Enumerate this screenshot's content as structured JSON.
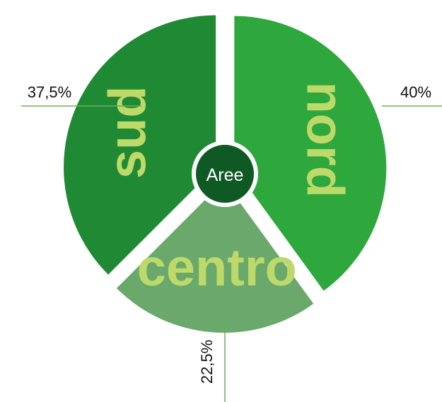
{
  "chart_data": {
    "type": "pie",
    "title": "Aree",
    "categories": [
      "nord",
      "centro",
      "sud"
    ],
    "values": [
      40,
      22.5,
      37.5
    ],
    "value_labels": [
      "40%",
      "22,5%",
      "37,5%"
    ],
    "colors": [
      "#2ea83c",
      "#6aa86c",
      "#1f8a33"
    ]
  }
}
